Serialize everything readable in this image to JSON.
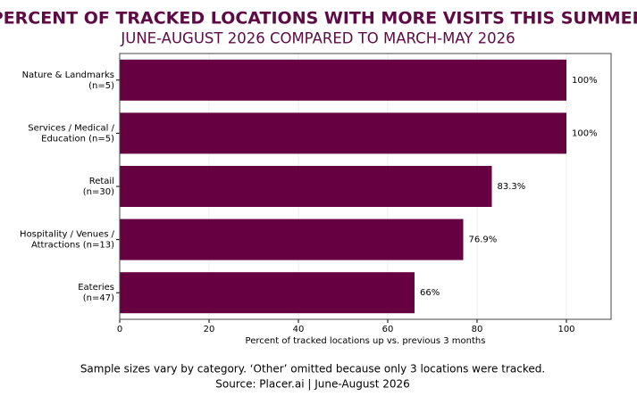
{
  "chart_data": {
    "type": "barh",
    "title": "PERCENT OF TRACKED LOCATIONS WITH MORE VISITS THIS SUMMER",
    "subtitle": "JUNE-AUGUST 2026 COMPARED TO MARCH-MAY 2026",
    "categories": [
      [
        "Nature & Landmarks",
        "(n=5)"
      ],
      [
        "Services / Medical /",
        "Education (n=5)"
      ],
      [
        "Retail",
        "(n=30)"
      ],
      [
        "Hospitality / Venues /",
        "Attractions (n=13)"
      ],
      [
        "Eateries",
        "(n=47)"
      ]
    ],
    "values": [
      100,
      100,
      83.3,
      76.9,
      66
    ],
    "value_labels": [
      "100%",
      "100%",
      "83.3%",
      "76.9%",
      "66%"
    ],
    "color": "#660040",
    "xlim": [
      0,
      110
    ],
    "xticks": [
      0,
      20,
      40,
      60,
      80,
      100
    ],
    "grid": true,
    "xlabel": "Percent of tracked locations up vs. previous 3 months",
    "footnote": "Sample sizes vary by category. ‘Other’ omitted because only 3 locations were tracked.",
    "source": "Source: Placer.ai | June-August 2026"
  }
}
